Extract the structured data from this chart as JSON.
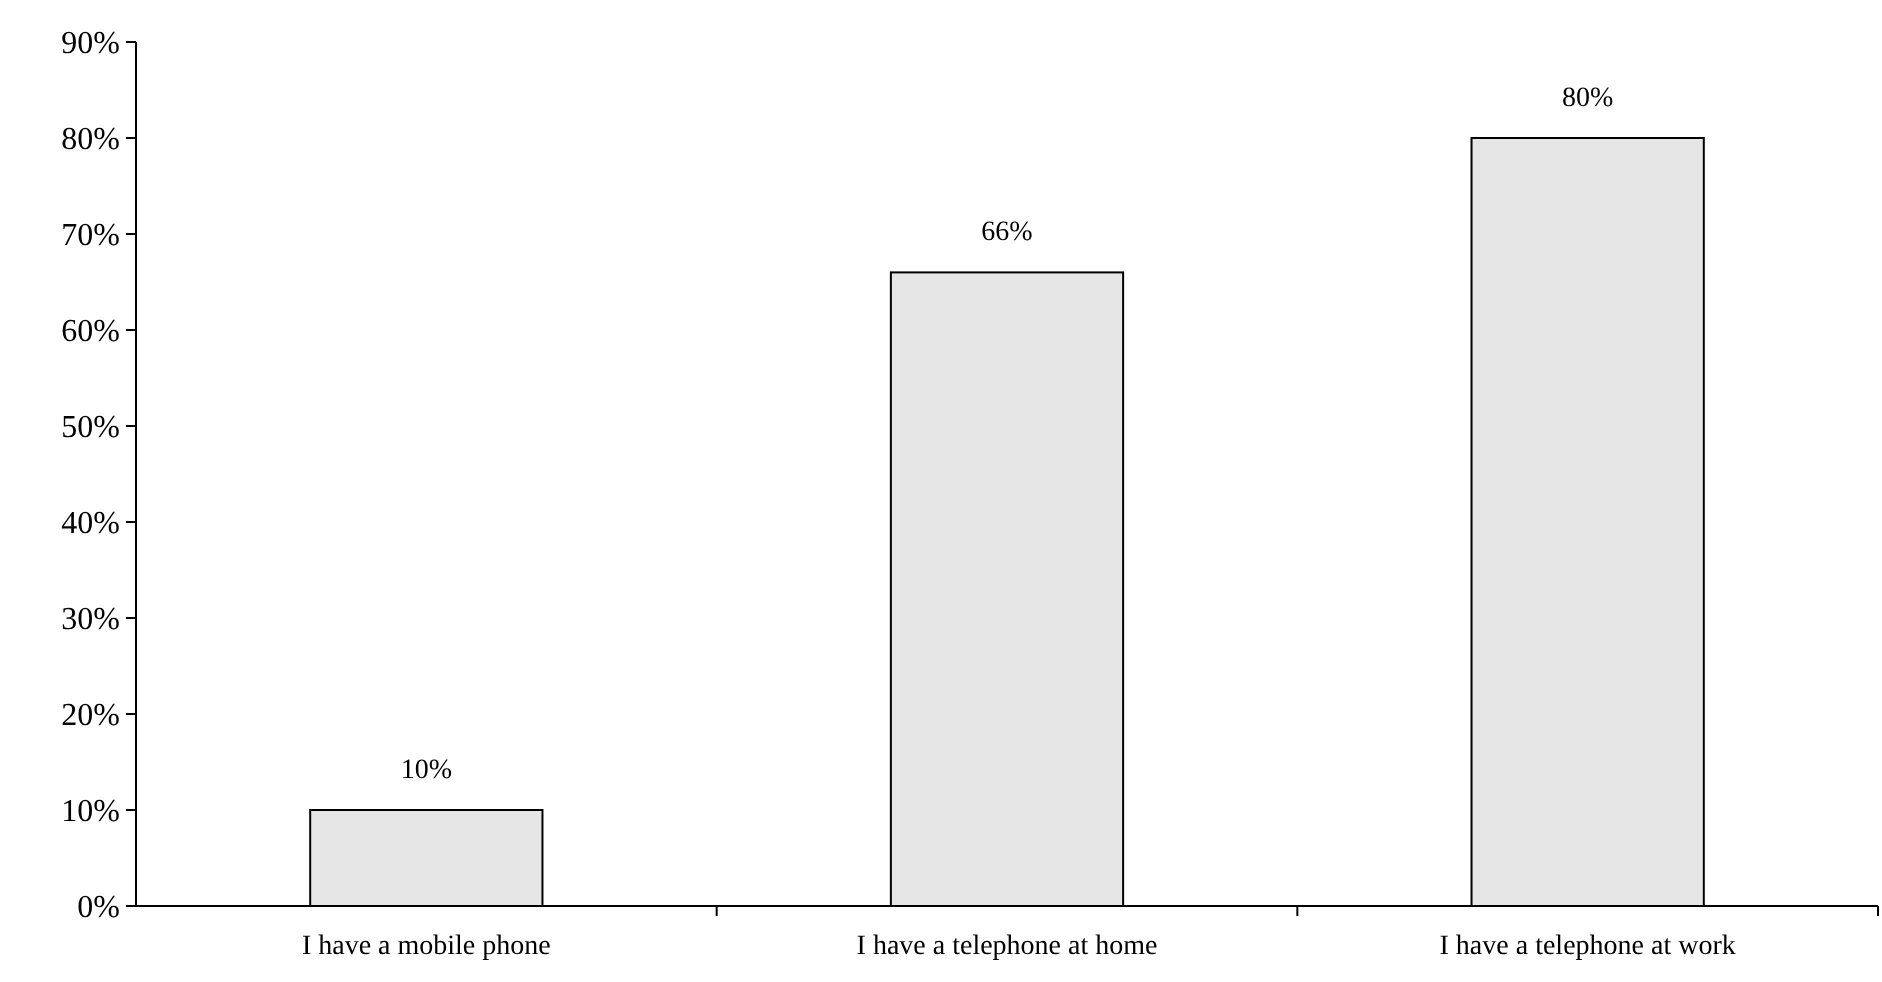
{
  "chart_data": {
    "type": "bar",
    "categories": [
      "I have a mobile phone",
      "I have a telephone at home",
      "I have a telephone at work"
    ],
    "values": [
      10,
      66,
      80
    ],
    "value_labels": [
      "10%",
      "66%",
      "80%"
    ],
    "color": "#e6e6e6",
    "ylim": [
      0,
      90
    ],
    "yticks": [
      {
        "value": 0,
        "label": "0%"
      },
      {
        "value": 10,
        "label": "10%"
      },
      {
        "value": 20,
        "label": "20%"
      },
      {
        "value": 30,
        "label": "30%"
      },
      {
        "value": 40,
        "label": "40%"
      },
      {
        "value": 50,
        "label": "50%"
      },
      {
        "value": 60,
        "label": "60%"
      },
      {
        "value": 70,
        "label": "70%"
      },
      {
        "value": 80,
        "label": "80%"
      },
      {
        "value": 90,
        "label": "90%"
      }
    ],
    "grid": false
  }
}
